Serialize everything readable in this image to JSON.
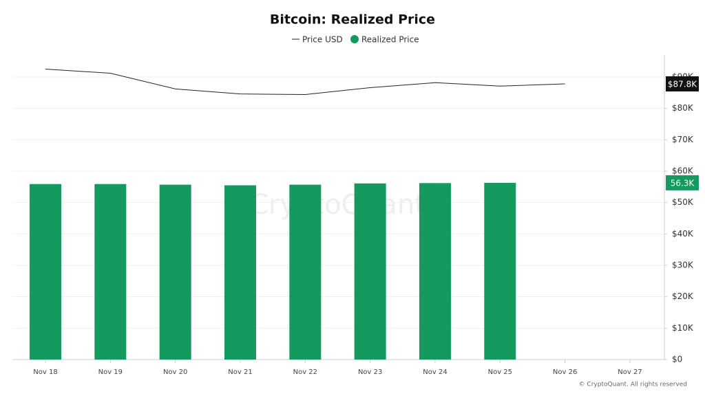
{
  "chart_data": {
    "type": "bar_line",
    "title": "Bitcoin: Realized Price",
    "categories": [
      "Nov 18",
      "Nov 19",
      "Nov 20",
      "Nov 21",
      "Nov 22",
      "Nov 23",
      "Nov 24",
      "Nov 25",
      "Nov 26",
      "Nov 27"
    ],
    "series": [
      {
        "name": "Price USD",
        "type": "line",
        "color": "#222222",
        "values": [
          92500,
          91200,
          86200,
          84600,
          84400,
          86600,
          88200,
          87100,
          87800,
          null
        ],
        "value_labels": [
          null,
          null,
          null,
          null,
          null,
          null,
          null,
          null,
          "$87.8K",
          null
        ]
      },
      {
        "name": "Realized Price",
        "type": "bar",
        "color": "#14995f",
        "values": [
          55900,
          55900,
          55700,
          55500,
          55700,
          56100,
          56200,
          56300,
          null,
          null
        ],
        "value_labels": [
          null,
          null,
          null,
          null,
          null,
          null,
          null,
          "56.3K",
          null,
          null
        ]
      }
    ],
    "ylim": [
      0,
      97000
    ],
    "yticks": [
      {
        "value": 0,
        "label": "$0"
      },
      {
        "value": 10000,
        "label": "$10K"
      },
      {
        "value": 20000,
        "label": "$20K"
      },
      {
        "value": 30000,
        "label": "$30K"
      },
      {
        "value": 40000,
        "label": "$40K"
      },
      {
        "value": 50000,
        "label": "$50K"
      },
      {
        "value": 60000,
        "label": "$60K"
      },
      {
        "value": 70000,
        "label": "$70K"
      },
      {
        "value": 80000,
        "label": "$80K"
      },
      {
        "value": 90000,
        "label": "$90K"
      }
    ],
    "grid": true,
    "watermark": "CryptoQuant",
    "copyright": "© CryptoQuant. All rights reserved"
  }
}
